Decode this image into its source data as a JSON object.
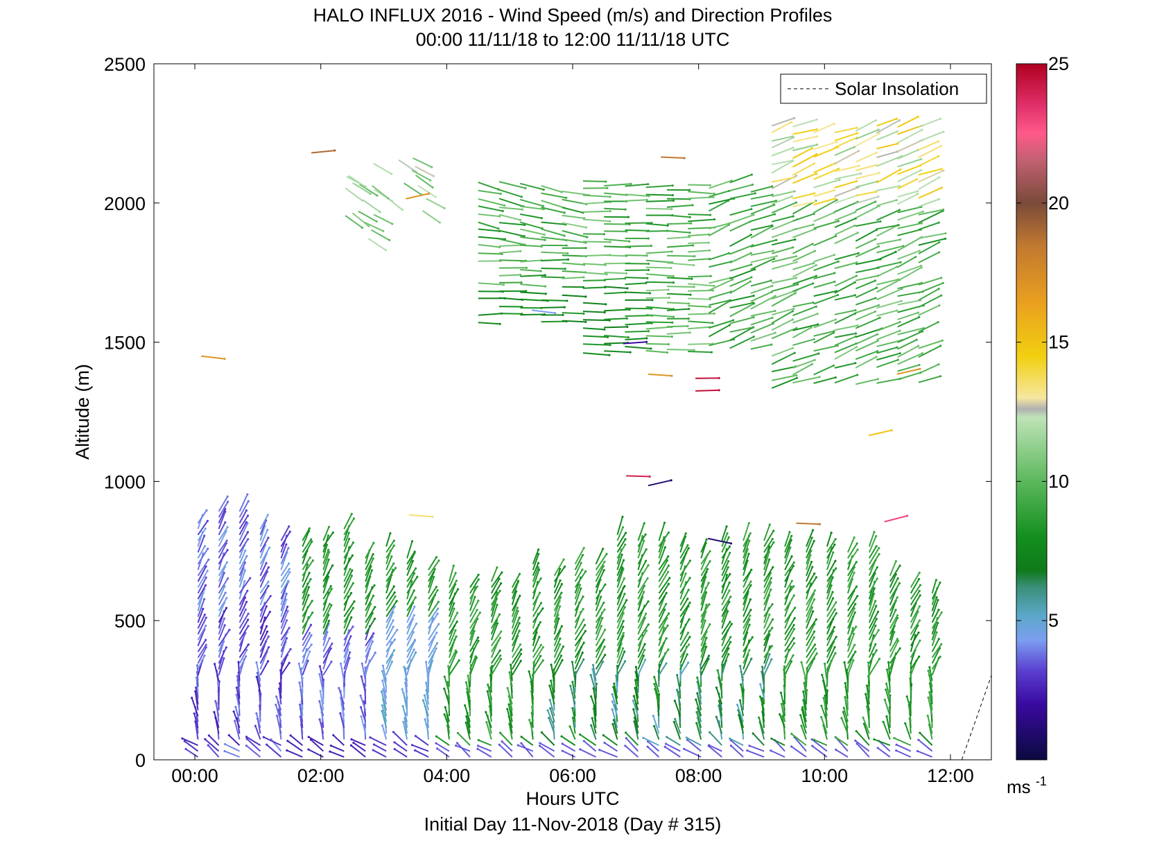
{
  "chart_data": {
    "type": "scatter",
    "title": "HALO INFLUX 2016 - Wind Speed (m/s) and Direction Profiles",
    "subtitle": "00:00 11/11/18 to 12:00 11/11/18  UTC",
    "xlabel": "Hours UTC",
    "ylabel": "Altitude (m)",
    "footer": "Initial Day 11-Nov-2018 (Day # 315)",
    "xlim": [
      -0.65,
      12.65
    ],
    "ylim": [
      0,
      2500
    ],
    "x_ticks": [
      0,
      2,
      4,
      6,
      8,
      10,
      12
    ],
    "x_tick_labels": [
      "00:00",
      "02:00",
      "04:00",
      "06:00",
      "08:00",
      "10:00",
      "12:00"
    ],
    "y_ticks": [
      0,
      500,
      1000,
      1500,
      2000,
      2500
    ],
    "y_tick_labels": [
      "0",
      "500",
      "1000",
      "1500",
      "2000",
      "2500"
    ],
    "legend": {
      "position": "top-right",
      "entries": [
        "Solar Insolation"
      ]
    },
    "colorbar": {
      "range": [
        0,
        25
      ],
      "ticks": [
        5,
        10,
        15,
        20,
        25
      ],
      "tick_labels": [
        "5",
        "10",
        "15",
        "20",
        "25"
      ],
      "unit_label": "ms",
      "unit_superscript": "-1",
      "stops": [
        {
          "v": 0,
          "c": "#0a0a40"
        },
        {
          "v": 2,
          "c": "#3a0aa0"
        },
        {
          "v": 3.2,
          "c": "#5a3fd0"
        },
        {
          "v": 4.3,
          "c": "#7c9ef0"
        },
        {
          "v": 5.2,
          "c": "#5aa8c8"
        },
        {
          "v": 6.2,
          "c": "#3a8f7a"
        },
        {
          "v": 6.8,
          "c": "#0f7a1a"
        },
        {
          "v": 8,
          "c": "#138f1e"
        },
        {
          "v": 10,
          "c": "#5cb85c"
        },
        {
          "v": 12.3,
          "c": "#bfe3b8"
        },
        {
          "v": 12.6,
          "c": "#b0b0b0"
        },
        {
          "v": 13,
          "c": "#f6e7a0"
        },
        {
          "v": 14.5,
          "c": "#f2cf10"
        },
        {
          "v": 16.5,
          "c": "#e99e20"
        },
        {
          "v": 18.5,
          "c": "#c07830"
        },
        {
          "v": 20,
          "c": "#7a4a3a"
        },
        {
          "v": 21.5,
          "c": "#c06070"
        },
        {
          "v": 22.5,
          "c": "#ff5a8a"
        },
        {
          "v": 23.5,
          "c": "#e0306a"
        },
        {
          "v": 25,
          "c": "#b00020"
        }
      ]
    },
    "solar_insolation": {
      "x": [
        12.18,
        12.7
      ],
      "y": [
        0,
        335
      ]
    },
    "profile_times": [
      0.05,
      0.38,
      0.71,
      1.04,
      1.37,
      1.71,
      2.04,
      2.37,
      2.71,
      3.04,
      3.37,
      3.71,
      4.04,
      4.37,
      4.71,
      5.04,
      5.37,
      5.71,
      6.04,
      6.37,
      6.71,
      7.04,
      7.37,
      7.71,
      8.04,
      8.37,
      8.71,
      9.04,
      9.37,
      9.71,
      10.04,
      10.37,
      10.71,
      11.04,
      11.37,
      11.71
    ],
    "profile_tops": [
      850,
      900,
      900,
      840,
      800,
      800,
      800,
      830,
      730,
      780,
      740,
      700,
      660,
      620,
      640,
      620,
      720,
      680,
      720,
      720,
      820,
      800,
      790,
      780,
      760,
      800,
      790,
      800,
      780,
      780,
      770,
      760,
      770,
      670,
      620,
      610
    ],
    "lower_layer": {
      "description": "wind barbs",
      "speed_by_altitude_band": [
        {
          "time_range": [
            0,
            1.5
          ],
          "speed_ms": 3
        },
        {
          "time_range": [
            1.5,
            3.2
          ],
          "speed_ms": 7.5
        },
        {
          "time_range": [
            3.2,
            3.8
          ],
          "speed_ms": 4.5
        },
        {
          "time_range": [
            3.8,
            11.8
          ],
          "speed_ms": 8.5
        }
      ]
    },
    "upper_layer": {
      "altitude_range": [
        1330,
        2290
      ],
      "time_range": [
        4.5,
        11.8
      ],
      "typical_speed_ms": 9.5
    },
    "isolated_barbs": [
      {
        "x": 0.1,
        "y": 1450,
        "speed": 17
      },
      {
        "x": 1.85,
        "y": 2180,
        "speed": 19
      },
      {
        "x": 3.4,
        "y": 880,
        "speed": 13.5
      },
      {
        "x": 6.85,
        "y": 1020,
        "speed": 24
      },
      {
        "x": 7.2,
        "y": 985,
        "speed": 1
      },
      {
        "x": 7.2,
        "y": 1385,
        "speed": 17
      },
      {
        "x": 7.95,
        "y": 1370,
        "speed": 24.5
      },
      {
        "x": 7.95,
        "y": 1325,
        "speed": 24.5
      },
      {
        "x": 10.7,
        "y": 1165,
        "speed": 15
      },
      {
        "x": 11.15,
        "y": 1385,
        "speed": 17
      },
      {
        "x": 10.95,
        "y": 855,
        "speed": 23
      },
      {
        "x": 9.55,
        "y": 850,
        "speed": 18.5
      },
      {
        "x": 8.15,
        "y": 795,
        "speed": 1
      },
      {
        "x": 6.8,
        "y": 1495,
        "speed": 2
      },
      {
        "x": 5.35,
        "y": 1615,
        "speed": 4.3
      },
      {
        "x": 7.4,
        "y": 2165,
        "speed": 18.5
      },
      {
        "x": 3.35,
        "y": 2015,
        "speed": 17
      }
    ]
  }
}
